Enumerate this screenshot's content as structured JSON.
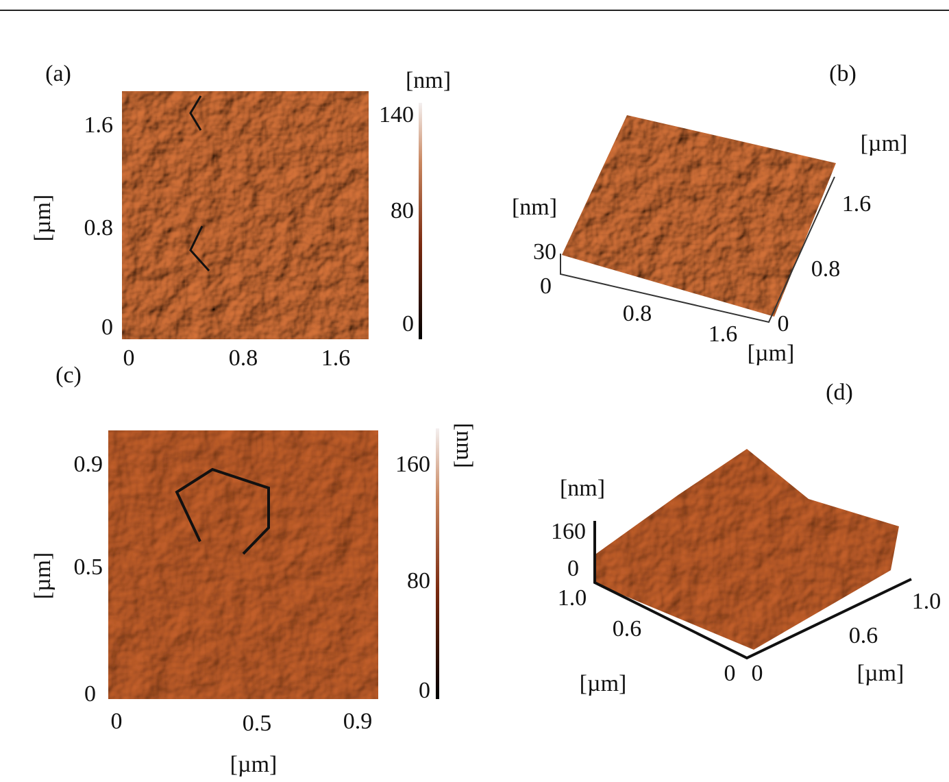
{
  "panels": [
    {
      "label": "(a)",
      "colorbar_unit": "[nm]",
      "colorbar_ticks": [
        "140",
        "80",
        "0"
      ],
      "y_ticks": [
        "1.6",
        "0.8",
        "0"
      ],
      "y_unit": "[µm]",
      "x_ticks": [
        "0",
        "0.8",
        "1.6"
      ]
    },
    {
      "label": "(b)",
      "z_unit": "[nm]",
      "z_ticks": [
        "30",
        "0"
      ],
      "x_ticks": [
        "0.8",
        "1.6"
      ],
      "x_unit": "[µm]",
      "y_ticks": [
        "1.6",
        "0.8",
        "0"
      ],
      "y_unit": "[µm]"
    },
    {
      "label": "(c)",
      "colorbar_unit": "[nm]",
      "colorbar_ticks": [
        "160",
        "80",
        "0"
      ],
      "y_ticks": [
        "0.9",
        "0.5",
        "0"
      ],
      "y_unit": "[µm]",
      "x_ticks": [
        "0",
        "0.5",
        "0.9"
      ],
      "x_unit": "[µm]"
    },
    {
      "label": "(d)",
      "z_unit": "[nm]",
      "z_ticks": [
        "160",
        "0"
      ],
      "left_ticks": [
        "1.0",
        "0.6",
        "0"
      ],
      "left_unit": "[µm]",
      "right_ticks": [
        "0",
        "0.6",
        "1.0"
      ],
      "right_unit": "[µm]"
    }
  ]
}
